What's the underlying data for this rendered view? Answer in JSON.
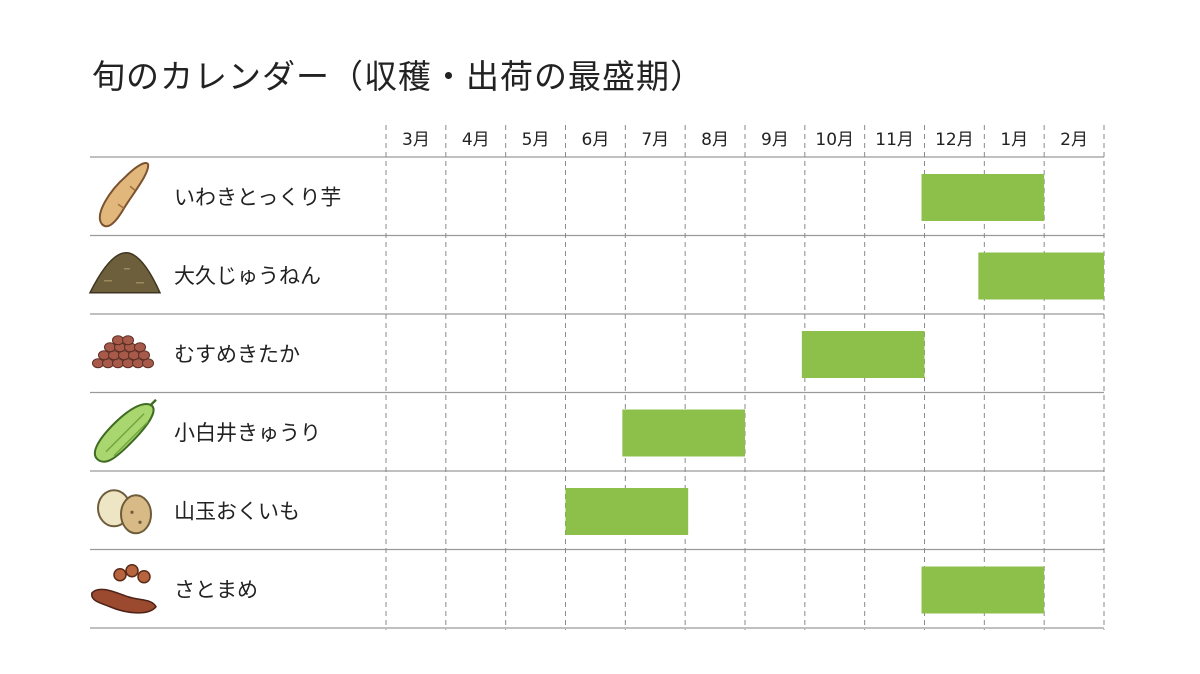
{
  "title": "旬のカレンダー（収穫・出荷の最盛期）",
  "colors": {
    "bar": "#8cc04b",
    "row_line": "#9a9a9a",
    "grid_line": "#8a8a8a"
  },
  "chart_data": {
    "type": "bar",
    "orientation": "horizontal-gantt",
    "title": "旬のカレンダー（収穫・出荷の最盛期）",
    "months": [
      "3月",
      "4月",
      "5月",
      "6月",
      "7月",
      "8月",
      "9月",
      "10月",
      "11月",
      "12月",
      "1月",
      "2月"
    ],
    "grid": "dashed vertical lines between months",
    "legend": "none",
    "rows": [
      {
        "name": "いわきとっくり芋",
        "icon": "sweet-potato-icon",
        "start": 8.95,
        "end": 11.0
      },
      {
        "name": "大久じゅうねん",
        "icon": "perilla-seed-pile-icon",
        "start": 9.9,
        "end": 12.0
      },
      {
        "name": "むすめきたか",
        "icon": "red-bean-pile-icon",
        "start": 6.95,
        "end": 9.0
      },
      {
        "name": "小白井きゅうり",
        "icon": "cucumber-icon",
        "start": 3.95,
        "end": 6.0
      },
      {
        "name": "山玉おくいも",
        "icon": "taro-icon",
        "start": 3.0,
        "end": 5.05
      },
      {
        "name": "さとまめ",
        "icon": "soybean-icon",
        "start": 8.95,
        "end": 11.0
      }
    ]
  }
}
